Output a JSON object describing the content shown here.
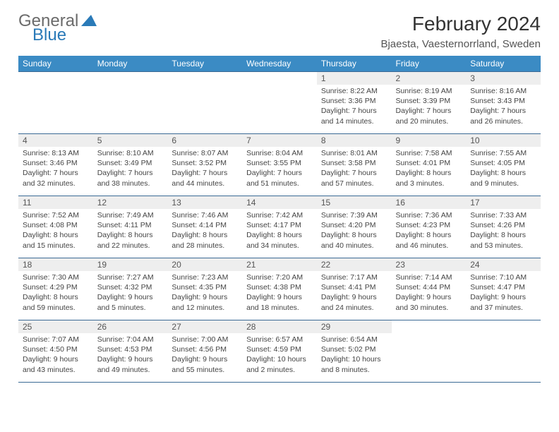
{
  "logo": {
    "word1": "General",
    "word2": "Blue",
    "color_gray": "#6b6b6b",
    "color_blue": "#2a7ab8"
  },
  "title": "February 2024",
  "location": "Bjaesta, Vaesternorrland, Sweden",
  "colors": {
    "header_bg": "#3b8bc4",
    "header_fg": "#ffffff",
    "rule": "#3b6a95",
    "daynum_bg": "#eeeeee",
    "text": "#444444"
  },
  "weekdays": [
    "Sunday",
    "Monday",
    "Tuesday",
    "Wednesday",
    "Thursday",
    "Friday",
    "Saturday"
  ],
  "first_weekday_index": 4,
  "days": [
    {
      "n": 1,
      "sunrise": "8:22 AM",
      "sunset": "3:36 PM",
      "daylight": "7 hours and 14 minutes."
    },
    {
      "n": 2,
      "sunrise": "8:19 AM",
      "sunset": "3:39 PM",
      "daylight": "7 hours and 20 minutes."
    },
    {
      "n": 3,
      "sunrise": "8:16 AM",
      "sunset": "3:43 PM",
      "daylight": "7 hours and 26 minutes."
    },
    {
      "n": 4,
      "sunrise": "8:13 AM",
      "sunset": "3:46 PM",
      "daylight": "7 hours and 32 minutes."
    },
    {
      "n": 5,
      "sunrise": "8:10 AM",
      "sunset": "3:49 PM",
      "daylight": "7 hours and 38 minutes."
    },
    {
      "n": 6,
      "sunrise": "8:07 AM",
      "sunset": "3:52 PM",
      "daylight": "7 hours and 44 minutes."
    },
    {
      "n": 7,
      "sunrise": "8:04 AM",
      "sunset": "3:55 PM",
      "daylight": "7 hours and 51 minutes."
    },
    {
      "n": 8,
      "sunrise": "8:01 AM",
      "sunset": "3:58 PM",
      "daylight": "7 hours and 57 minutes."
    },
    {
      "n": 9,
      "sunrise": "7:58 AM",
      "sunset": "4:01 PM",
      "daylight": "8 hours and 3 minutes."
    },
    {
      "n": 10,
      "sunrise": "7:55 AM",
      "sunset": "4:05 PM",
      "daylight": "8 hours and 9 minutes."
    },
    {
      "n": 11,
      "sunrise": "7:52 AM",
      "sunset": "4:08 PM",
      "daylight": "8 hours and 15 minutes."
    },
    {
      "n": 12,
      "sunrise": "7:49 AM",
      "sunset": "4:11 PM",
      "daylight": "8 hours and 22 minutes."
    },
    {
      "n": 13,
      "sunrise": "7:46 AM",
      "sunset": "4:14 PM",
      "daylight": "8 hours and 28 minutes."
    },
    {
      "n": 14,
      "sunrise": "7:42 AM",
      "sunset": "4:17 PM",
      "daylight": "8 hours and 34 minutes."
    },
    {
      "n": 15,
      "sunrise": "7:39 AM",
      "sunset": "4:20 PM",
      "daylight": "8 hours and 40 minutes."
    },
    {
      "n": 16,
      "sunrise": "7:36 AM",
      "sunset": "4:23 PM",
      "daylight": "8 hours and 46 minutes."
    },
    {
      "n": 17,
      "sunrise": "7:33 AM",
      "sunset": "4:26 PM",
      "daylight": "8 hours and 53 minutes."
    },
    {
      "n": 18,
      "sunrise": "7:30 AM",
      "sunset": "4:29 PM",
      "daylight": "8 hours and 59 minutes."
    },
    {
      "n": 19,
      "sunrise": "7:27 AM",
      "sunset": "4:32 PM",
      "daylight": "9 hours and 5 minutes."
    },
    {
      "n": 20,
      "sunrise": "7:23 AM",
      "sunset": "4:35 PM",
      "daylight": "9 hours and 12 minutes."
    },
    {
      "n": 21,
      "sunrise": "7:20 AM",
      "sunset": "4:38 PM",
      "daylight": "9 hours and 18 minutes."
    },
    {
      "n": 22,
      "sunrise": "7:17 AM",
      "sunset": "4:41 PM",
      "daylight": "9 hours and 24 minutes."
    },
    {
      "n": 23,
      "sunrise": "7:14 AM",
      "sunset": "4:44 PM",
      "daylight": "9 hours and 30 minutes."
    },
    {
      "n": 24,
      "sunrise": "7:10 AM",
      "sunset": "4:47 PM",
      "daylight": "9 hours and 37 minutes."
    },
    {
      "n": 25,
      "sunrise": "7:07 AM",
      "sunset": "4:50 PM",
      "daylight": "9 hours and 43 minutes."
    },
    {
      "n": 26,
      "sunrise": "7:04 AM",
      "sunset": "4:53 PM",
      "daylight": "9 hours and 49 minutes."
    },
    {
      "n": 27,
      "sunrise": "7:00 AM",
      "sunset": "4:56 PM",
      "daylight": "9 hours and 55 minutes."
    },
    {
      "n": 28,
      "sunrise": "6:57 AM",
      "sunset": "4:59 PM",
      "daylight": "10 hours and 2 minutes."
    },
    {
      "n": 29,
      "sunrise": "6:54 AM",
      "sunset": "5:02 PM",
      "daylight": "10 hours and 8 minutes."
    }
  ],
  "labels": {
    "sunrise": "Sunrise:",
    "sunset": "Sunset:",
    "daylight": "Daylight:"
  }
}
